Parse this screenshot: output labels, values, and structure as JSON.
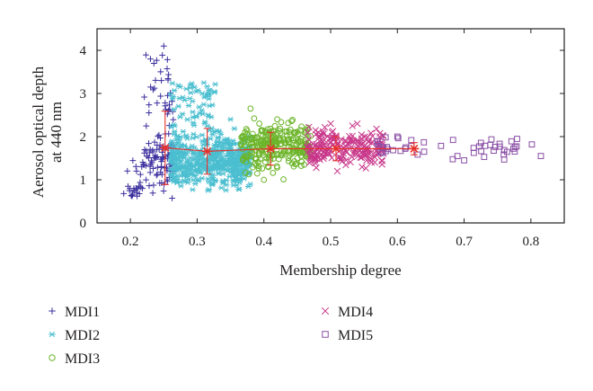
{
  "chart_data": {
    "type": "scatter",
    "title": "",
    "xlabel": "Membership degree",
    "ylabel_lines": [
      "Aerosol optical depth",
      "at 440 nm"
    ],
    "xlim": [
      0.15,
      0.85
    ],
    "ylim": [
      0,
      4.5
    ],
    "xticks": [
      0.2,
      0.3,
      0.4,
      0.5,
      0.6,
      0.7,
      0.8
    ],
    "xtick_labels": [
      "0.2",
      "0.3",
      "0.4",
      "0.5",
      "0.6",
      "0.7",
      "0.8"
    ],
    "yticks": [
      0,
      1,
      2,
      3,
      4
    ],
    "ytick_labels": [
      "0",
      "1",
      "2",
      "3",
      "4"
    ],
    "grid": false,
    "legend_position": "bottom",
    "series": [
      {
        "name": "MDI1",
        "marker": "plus",
        "color": "#3b2f9e",
        "x_range": [
          0.19,
          0.265
        ],
        "count": 150,
        "sample_points": [
          [
            0.19,
            0.68
          ],
          [
            0.21,
            0.62
          ],
          [
            0.23,
            3.8
          ],
          [
            0.25,
            4.1
          ],
          [
            0.24,
            1.8
          ],
          [
            0.26,
            1.2
          ]
        ]
      },
      {
        "name": "MDI2",
        "marker": "asterisk",
        "color": "#4bbfd0",
        "x_range": [
          0.26,
          0.38
        ],
        "count": 600,
        "sample_points": [
          [
            0.29,
            3.2
          ],
          [
            0.31,
            3.25
          ],
          [
            0.3,
            1.0
          ],
          [
            0.35,
            2.4
          ],
          [
            0.37,
            1.9
          ]
        ]
      },
      {
        "name": "MDI3",
        "marker": "circle",
        "color": "#6cb52a",
        "x_range": [
          0.365,
          0.47
        ],
        "count": 280,
        "sample_points": [
          [
            0.38,
            2.65
          ],
          [
            0.42,
            2.4
          ],
          [
            0.4,
            1.0
          ],
          [
            0.45,
            1.5
          ]
        ]
      },
      {
        "name": "MDI4",
        "marker": "x",
        "color": "#c8368a",
        "x_range": [
          0.465,
          0.58
        ],
        "count": 200,
        "sample_points": [
          [
            0.5,
            2.3
          ],
          [
            0.54,
            2.3
          ],
          [
            0.51,
            1.2
          ],
          [
            0.56,
            1.5
          ]
        ]
      },
      {
        "name": "MDI5",
        "marker": "square",
        "color": "#8a4fa6",
        "x_range": [
          0.57,
          0.815
        ],
        "count": 45,
        "sample_points": [
          [
            0.6,
            2.0
          ],
          [
            0.64,
            1.65
          ],
          [
            0.69,
            1.55
          ],
          [
            0.7,
            1.45
          ],
          [
            0.73,
            1.53
          ],
          [
            0.76,
            1.47
          ],
          [
            0.815,
            1.55
          ]
        ]
      }
    ],
    "mean_series": {
      "color": "#e8302a",
      "points": [
        {
          "x": 0.252,
          "y": 1.74,
          "err": 0.85
        },
        {
          "x": 0.315,
          "y": 1.66,
          "err": 0.53
        },
        {
          "x": 0.41,
          "y": 1.72,
          "err": 0.38
        },
        {
          "x": 0.508,
          "y": 1.72,
          "err": 0.28
        },
        {
          "x": 0.625,
          "y": 1.72,
          "err": 0.14
        }
      ]
    }
  }
}
